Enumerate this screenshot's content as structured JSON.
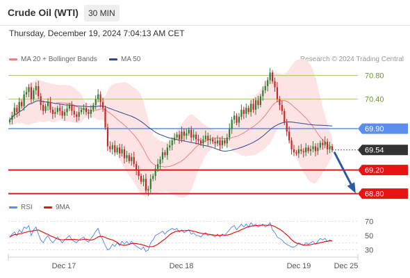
{
  "header": {
    "instrument": "Crude Oil (WTI)",
    "timeframe": "30 MIN"
  },
  "timestamp": "Thursday, December 19, 2024 7:04:13 AM CET",
  "legend": {
    "ma_bb_label": "MA 20 + Bollinger Bands",
    "ma50_label": "MA 50",
    "rsi_label": "RSI",
    "ma9_label": "9MA",
    "copyright": "Research © 2024 Trading Central"
  },
  "colors": {
    "ma20": "#f08080",
    "ma50": "#2c4a8a",
    "bb_fill": "#fde3e3",
    "bull": "#2e7d32",
    "bear": "#c62828",
    "support": "#e81313",
    "resistance": "#9dc96a",
    "pivot": "#5b8def",
    "last": "#333333",
    "rsi": "#5b8def",
    "rsi_ma": "#e81313",
    "arrow": "#2c5aa0"
  },
  "chart_data": [
    {
      "type": "candlestick",
      "y_range": [
        68.76,
        70.96
      ],
      "x_labels": [
        "Dec 17",
        "Dec 18",
        "Dec 19",
        "Dec 25"
      ],
      "levels": [
        {
          "value": 70.8,
          "label": "70.80",
          "kind": "resistance"
        },
        {
          "value": 70.4,
          "label": "70.40",
          "kind": "resistance"
        },
        {
          "value": 69.9,
          "label": "69.90",
          "kind": "pivot"
        },
        {
          "value": 69.54,
          "label": "69.54",
          "kind": "last"
        },
        {
          "value": 69.2,
          "label": "69.20",
          "kind": "support"
        },
        {
          "value": 68.8,
          "label": "68.80",
          "kind": "support"
        }
      ],
      "close": [
        70.05,
        70.12,
        70.25,
        70.18,
        70.35,
        70.28,
        70.48,
        70.52,
        70.6,
        70.4,
        70.55,
        70.62,
        70.45,
        70.3,
        70.2,
        70.28,
        70.35,
        70.22,
        70.15,
        70.18,
        70.25,
        70.2,
        70.12,
        70.18,
        70.24,
        70.3,
        70.2,
        70.14,
        70.1,
        70.18,
        70.22,
        70.25,
        70.18,
        70.15,
        70.22,
        70.3,
        70.4,
        70.48,
        70.35,
        70.25,
        69.92,
        69.6,
        69.55,
        69.62,
        69.5,
        69.58,
        69.48,
        69.55,
        69.4,
        69.45,
        69.35,
        69.42,
        69.3,
        69.2,
        69.1,
        69.0,
        69.05,
        68.85,
        68.88,
        69.05,
        69.1,
        69.22,
        69.3,
        69.38,
        69.5,
        69.45,
        69.58,
        69.62,
        69.7,
        69.75,
        69.8,
        69.72,
        69.85,
        69.78,
        69.82,
        69.88,
        69.75,
        69.8,
        69.72,
        69.7,
        69.65,
        69.72,
        69.78,
        69.7,
        69.72,
        69.68,
        69.65,
        69.7,
        69.62,
        69.7,
        69.65,
        69.75,
        69.9,
        70.05,
        70.12,
        70.0,
        70.1,
        70.22,
        70.15,
        70.25,
        70.18,
        70.32,
        70.22,
        70.38,
        70.3,
        70.45,
        70.55,
        70.62,
        70.72,
        70.85,
        70.7,
        70.6,
        70.4,
        70.3,
        70.2,
        70.0,
        69.85,
        69.7,
        69.55,
        69.5,
        69.48,
        69.55,
        69.52,
        69.5,
        69.58,
        69.52,
        69.55,
        69.6,
        69.52,
        69.58,
        69.66,
        69.62,
        69.68,
        69.55,
        69.6,
        69.54
      ]
    },
    {
      "type": "line",
      "name": "RSI",
      "y_ticks": [
        30,
        50,
        70
      ],
      "rsi": [
        48,
        52,
        55,
        50,
        58,
        54,
        62,
        60,
        64,
        50,
        58,
        62,
        52,
        44,
        40,
        46,
        50,
        44,
        40,
        44,
        48,
        44,
        40,
        44,
        47,
        50,
        44,
        42,
        40,
        44,
        46,
        48,
        43,
        41,
        46,
        50,
        56,
        60,
        50,
        44,
        36,
        30,
        32,
        38,
        35,
        40,
        36,
        42,
        38,
        42,
        38,
        42,
        38,
        35,
        33,
        31,
        34,
        28,
        30,
        40,
        44,
        50,
        52,
        54,
        56,
        52,
        56,
        58,
        60,
        58,
        60,
        55,
        58,
        54,
        56,
        58,
        52,
        54,
        50,
        50,
        48,
        52,
        54,
        50,
        52,
        50,
        48,
        52,
        48,
        52,
        50,
        54,
        58,
        62,
        64,
        58,
        62,
        66,
        62,
        66,
        62,
        68,
        64,
        66,
        62,
        64,
        66,
        62,
        64,
        68,
        58,
        54,
        48,
        46,
        44,
        40,
        38,
        36,
        34,
        34,
        36,
        40,
        38,
        36,
        40,
        38,
        40,
        42,
        38,
        42,
        46,
        44,
        46,
        42,
        44,
        42
      ]
    }
  ]
}
